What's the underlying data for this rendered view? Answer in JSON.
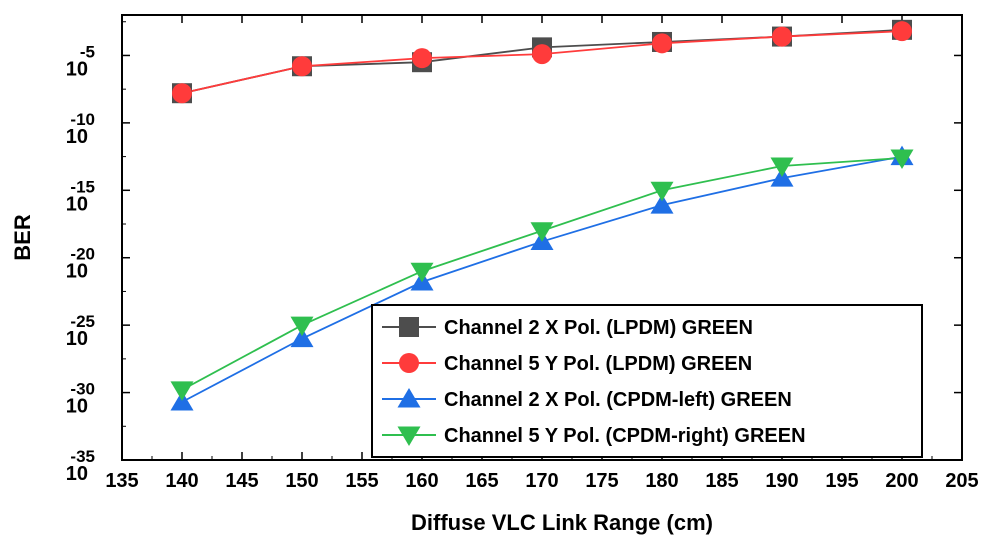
{
  "chart_data": {
    "type": "line",
    "xlabel": "Diffuse VLC Link Range (cm)",
    "ylabel": "BER",
    "xlim": [
      135,
      205
    ],
    "x_ticks": [
      135,
      140,
      145,
      150,
      155,
      160,
      165,
      170,
      175,
      180,
      185,
      190,
      195,
      200,
      205
    ],
    "ylim_exponent": [
      -35,
      -2
    ],
    "y_scale": "log",
    "y_tick_exponents": [
      -5,
      -10,
      -15,
      -20,
      -25,
      -30,
      -35
    ],
    "y_tick_base": "10",
    "legend_position": "bottom-right",
    "grid": false,
    "series": [
      {
        "name": "Channel 2 X Pol. (LPDM) GREEN",
        "color": "#4d4d4d",
        "marker": "square",
        "x": [
          140,
          150,
          160,
          170,
          180,
          190,
          200
        ],
        "y_exponent": [
          -7.8,
          -5.8,
          -5.5,
          -4.4,
          -4.0,
          -3.6,
          -3.1
        ]
      },
      {
        "name": "Channel 5 Y Pol. (LPDM) GREEN",
        "color": "#ff3b3b",
        "marker": "circle",
        "x": [
          140,
          150,
          160,
          170,
          180,
          190,
          200
        ],
        "y_exponent": [
          -7.8,
          -5.8,
          -5.2,
          -4.9,
          -4.1,
          -3.6,
          -3.2
        ]
      },
      {
        "name": "Channel 2 X Pol. (CPDM-left) GREEN",
        "color": "#1f6fe5",
        "marker": "triangle-up",
        "x": [
          140,
          150,
          160,
          170,
          180,
          190,
          200
        ],
        "y_exponent": [
          -30.7,
          -26.0,
          -21.8,
          -18.8,
          -16.1,
          -14.1,
          -12.5
        ]
      },
      {
        "name": "Channel 5 Y Pol. (CPDM-right) GREEN",
        "color": "#2fbf4f",
        "marker": "triangle-down",
        "x": [
          140,
          150,
          160,
          170,
          180,
          190,
          200
        ],
        "y_exponent": [
          -29.8,
          -25.0,
          -21.0,
          -18.0,
          -15.0,
          -13.2,
          -12.6
        ]
      }
    ]
  }
}
